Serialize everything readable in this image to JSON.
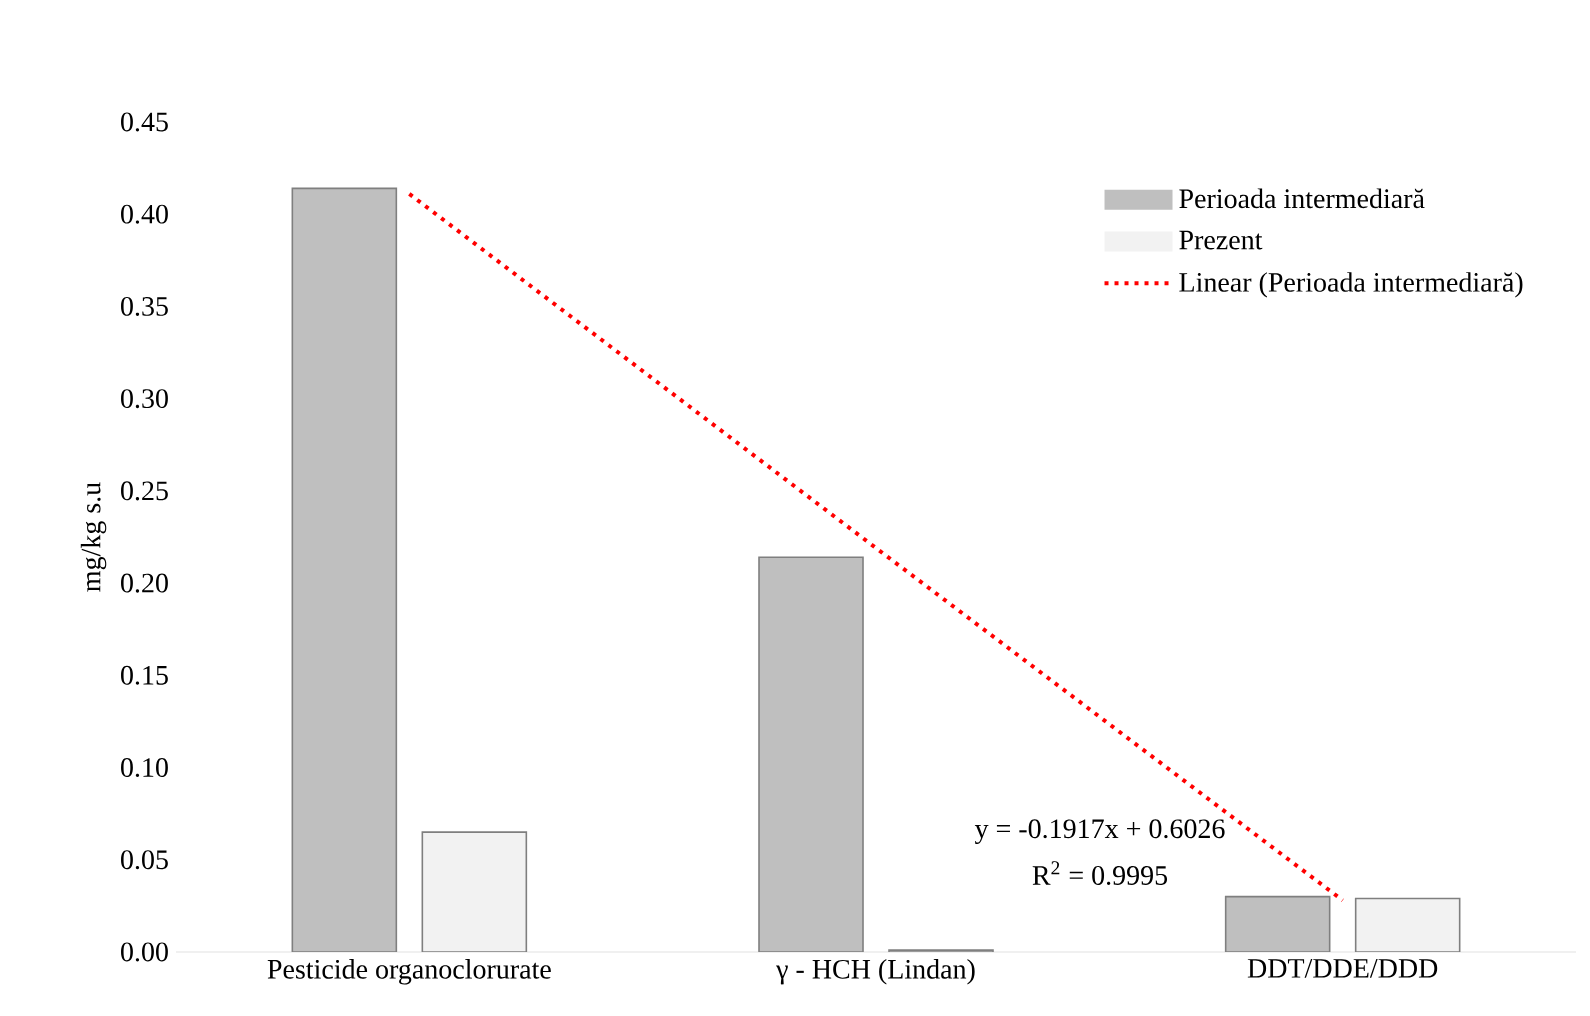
{
  "chart_data": {
    "type": "bar",
    "ylabel": "mg/kg s.u",
    "categories": [
      "Pesticide organoclorurate",
      "γ - HCH (Lindan)",
      "DDT/DDE/DDD"
    ],
    "series": [
      {
        "name": "Perioada intermediară",
        "color": "#bfbfbf",
        "values": [
          0.414,
          0.214,
          0.03
        ]
      },
      {
        "name": "Prezent",
        "color": "#f2f2f2",
        "values": [
          0.065,
          0.001,
          0.029
        ]
      },
      {
        "name": "Linear (Perioada intermediară)",
        "type": "line",
        "color": "#ff0000",
        "line_style": "dotted",
        "marker": "none",
        "values": [
          0.411,
          0.219,
          0.028
        ]
      }
    ],
    "ylim": [
      0,
      0.45
    ],
    "yticks": [
      {
        "value": 0,
        "label": "0.00"
      },
      {
        "value": 0.05,
        "label": "0.05"
      },
      {
        "value": 0.1,
        "label": "0.10"
      },
      {
        "value": 0.15,
        "label": "0.15"
      },
      {
        "value": 0.2,
        "label": "0.20"
      },
      {
        "value": 0.25,
        "label": "0.25"
      },
      {
        "value": 0.3,
        "label": "0.30"
      },
      {
        "value": 0.35,
        "label": "0.35"
      },
      {
        "value": 0.4,
        "label": "0.40"
      },
      {
        "value": 0.45,
        "label": "0.45"
      }
    ],
    "legend": "top right",
    "annotations": [
      "y = -0.1917x + 0.6026",
      "R$^{2}$ = 0.9995"
    ]
  }
}
